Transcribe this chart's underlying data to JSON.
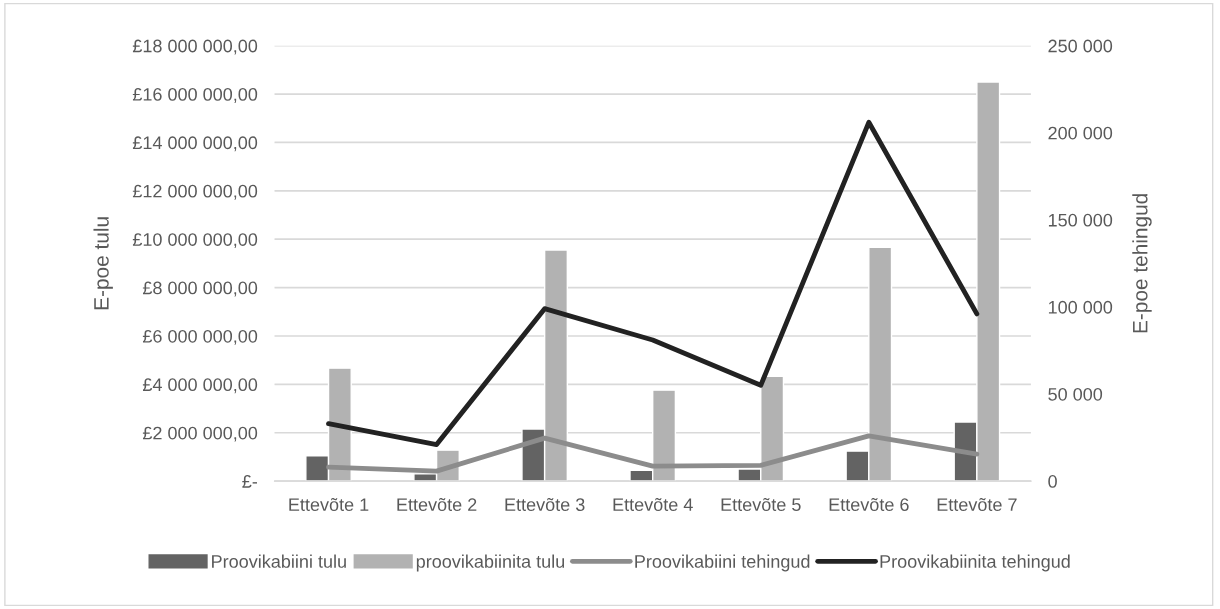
{
  "chart_data": {
    "type": "bar",
    "ylabel": "E-poe tulu",
    "y2label": "E-poe tehingud",
    "categories": [
      "Ettevõte 1",
      "Ettevõte 2",
      "Ettevõte 3",
      "Ettevõte 4",
      "Ettevõte 5",
      "Ettevõte 6",
      "Ettevõte 7"
    ],
    "series": [
      {
        "name": "Proovikabiini tulu",
        "color": "#636363",
        "values": [
          1050000,
          300000,
          2150000,
          450000,
          500000,
          1240000,
          2440000
        ]
      },
      {
        "name": "proovikabiinita tulu",
        "color": "#b2b2b2",
        "values": [
          4670000,
          1280000,
          9550000,
          3760000,
          4330000,
          9660000,
          16500000
        ]
      },
      {
        "name": "Proovikabiini tehingud",
        "type": "line",
        "axis": "y2",
        "color": "#8c8c8c",
        "values": [
          8000,
          5700,
          24700,
          8600,
          9000,
          26000,
          15500
        ]
      },
      {
        "name": "Proovikabiinita tehingud",
        "type": "line",
        "axis": "y2",
        "color": "#222222",
        "values": [
          33000,
          21000,
          99000,
          81000,
          55000,
          206000,
          96000
        ]
      }
    ],
    "ylim": [
      0,
      18000000
    ],
    "yticks": [
      {
        "value": 0,
        "label": "£-"
      },
      {
        "value": 2000000,
        "label": "£2 000 000,00"
      },
      {
        "value": 4000000,
        "label": "£4 000 000,00"
      },
      {
        "value": 6000000,
        "label": "£6 000 000,00"
      },
      {
        "value": 8000000,
        "label": "£8 000 000,00"
      },
      {
        "value": 10000000,
        "label": "£10 000 000,00"
      },
      {
        "value": 12000000,
        "label": "£12 000 000,00"
      },
      {
        "value": 14000000,
        "label": "£14 000 000,00"
      },
      {
        "value": 16000000,
        "label": "£16 000 000,00"
      },
      {
        "value": 18000000,
        "label": "£18 000 000,00"
      }
    ],
    "y2lim": [
      0,
      250000
    ],
    "y2ticks": [
      {
        "value": 0,
        "label": "0"
      },
      {
        "value": 50000,
        "label": "50 000"
      },
      {
        "value": 100000,
        "label": "100 000"
      },
      {
        "value": 150000,
        "label": "150 000"
      },
      {
        "value": 200000,
        "label": "200 000"
      },
      {
        "value": 250000,
        "label": "250 000"
      }
    ],
    "grid": "y",
    "legend": "bottom",
    "line_style": "solid",
    "marker": "none"
  }
}
